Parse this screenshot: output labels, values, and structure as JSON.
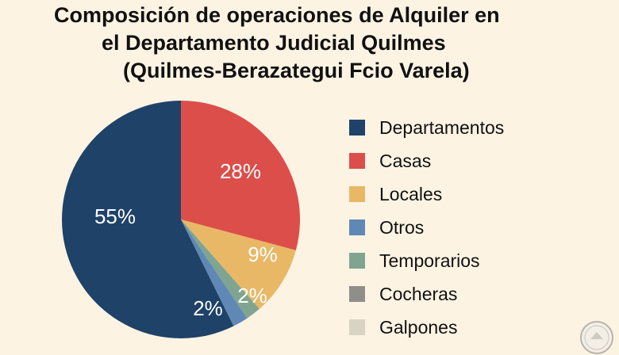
{
  "chart_data": {
    "type": "pie",
    "title": [
      "Composición de operaciones de Alquiler en",
      "el Departamento Judicial Quilmes",
      "(Quilmes-Berazategui Fcio Varela)"
    ],
    "slices": [
      {
        "name": "Departamentos",
        "value": 55,
        "label": "55%",
        "color": "#1f4268"
      },
      {
        "name": "Casas",
        "value": 28,
        "label": "28%",
        "color": "#dc4e4a"
      },
      {
        "name": "Locales",
        "value": 9,
        "label": "9%",
        "color": "#e8b866"
      },
      {
        "name": "Temporarios",
        "value": 2,
        "label": "2%",
        "color": "#7fa590"
      },
      {
        "name": "Otros",
        "value": 2,
        "label": "2%",
        "color": "#5f88b5"
      }
    ],
    "legend": [
      {
        "name": "Departamentos",
        "color": "#1f4268"
      },
      {
        "name": "Casas",
        "color": "#dc4e4a"
      },
      {
        "name": "Locales",
        "color": "#e8b866"
      },
      {
        "name": "Otros",
        "color": "#5f88b5"
      },
      {
        "name": "Temporarios",
        "color": "#7fa590"
      },
      {
        "name": "Cocheras",
        "color": "#8f8f8a"
      },
      {
        "name": "Galpones",
        "color": "#d9d3c4"
      }
    ],
    "legend_position": "right"
  }
}
